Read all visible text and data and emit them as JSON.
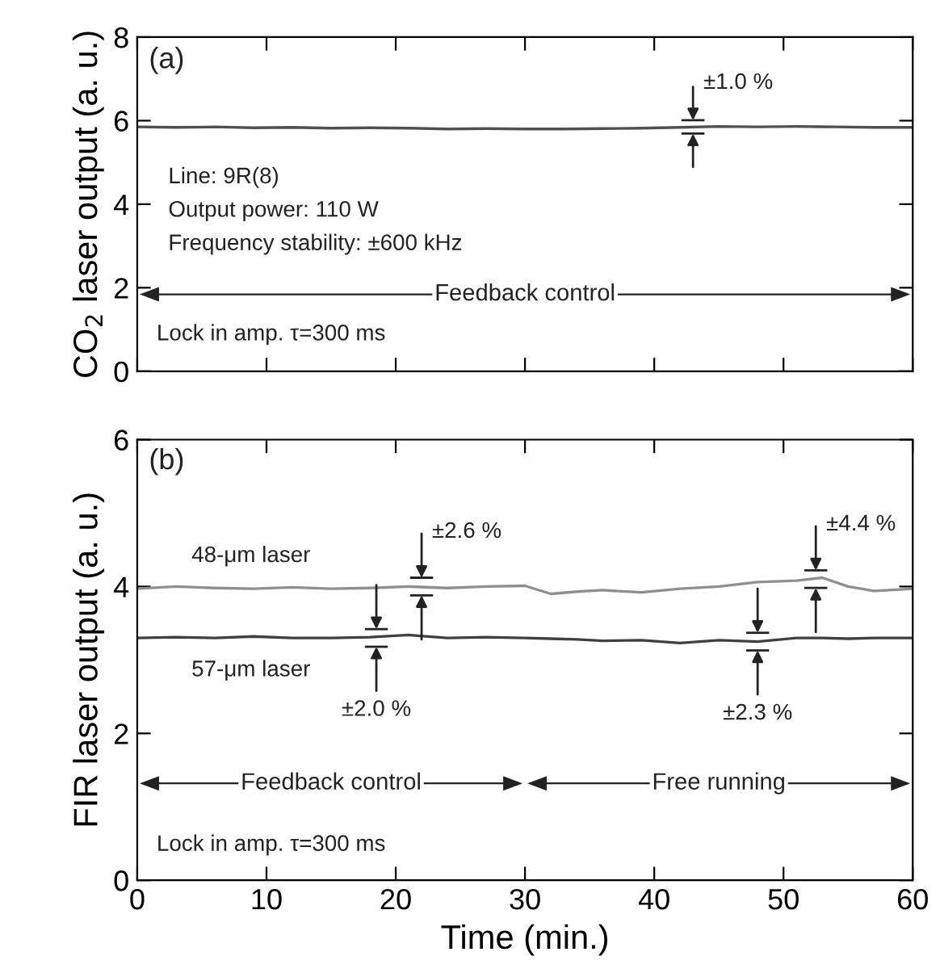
{
  "chart_data": [
    {
      "type": "line",
      "ylabel": "CO$_{2}$ laser output (a. u.)",
      "xlim": [
        0,
        60
      ],
      "ylim": [
        0,
        8
      ],
      "xticks": [
        0,
        10,
        20,
        30,
        40,
        50,
        60
      ],
      "yticks": [
        0,
        2,
        4,
        6,
        8
      ],
      "tick_labels": "y",
      "grid": false,
      "x": [
        0,
        3,
        6,
        9,
        12,
        15,
        18,
        21,
        24,
        27,
        30,
        33,
        36,
        39,
        42,
        45,
        48,
        51,
        54,
        57,
        60
      ],
      "series": [
        {
          "color": "#505050",
          "values": [
            5.85,
            5.84,
            5.85,
            5.83,
            5.84,
            5.82,
            5.83,
            5.82,
            5.8,
            5.81,
            5.8,
            5.8,
            5.81,
            5.82,
            5.84,
            5.86,
            5.85,
            5.86,
            5.85,
            5.84,
            5.84
          ]
        }
      ],
      "annotations": [
        "(a)",
        "Line: 9R(8)",
        "Output power: 110 W",
        "Frequency stability: ±600 kHz",
        "Lock in amp. τ=300 ms",
        {
          "text": "±1.0 %",
          "x": 43,
          "y": 5.85
        },
        "Feedback control"
      ]
    },
    {
      "type": "line",
      "xlabel": "Time (min.)",
      "ylabel": "FIR laser output (a. u.)",
      "xlim": [
        0,
        60
      ],
      "ylim": [
        0,
        6
      ],
      "xticks": [
        0,
        10,
        20,
        30,
        40,
        50,
        60
      ],
      "yticks": [
        0,
        2,
        4,
        6
      ],
      "grid": false,
      "x": [
        0,
        3,
        6,
        9,
        12,
        15,
        18,
        21,
        24,
        27,
        30,
        32,
        34,
        36,
        39,
        42,
        45,
        48,
        51,
        53,
        55,
        57,
        60
      ],
      "series": [
        {
          "name": "48-μm laser",
          "color": "#8f8f8f",
          "values": [
            3.97,
            4.0,
            3.98,
            3.97,
            3.99,
            3.97,
            3.98,
            4.0,
            3.98,
            4.0,
            4.01,
            3.9,
            3.93,
            3.95,
            3.92,
            3.97,
            4.0,
            4.06,
            4.08,
            4.12,
            4.0,
            3.94,
            3.97
          ]
        },
        {
          "name": "57-μm laser",
          "color": "#404040",
          "values": [
            3.3,
            3.31,
            3.3,
            3.32,
            3.3,
            3.3,
            3.31,
            3.34,
            3.3,
            3.31,
            3.3,
            3.29,
            3.28,
            3.26,
            3.27,
            3.23,
            3.27,
            3.25,
            3.3,
            3.3,
            3.29,
            3.3,
            3.3
          ]
        }
      ],
      "annotations": [
        "(b)",
        "Lock in amp. τ=300 ms",
        {
          "text": "±2.6 %",
          "x": 22,
          "y": 4.0
        },
        {
          "text": "±4.4 %",
          "x": 52.5,
          "y": 4.1
        },
        {
          "text": "±2.0 %",
          "x": 18.5,
          "y": 3.3
        },
        {
          "text": "±2.3 %",
          "x": 48,
          "y": 3.25
        },
        "Feedback control",
        "Free running"
      ]
    }
  ]
}
